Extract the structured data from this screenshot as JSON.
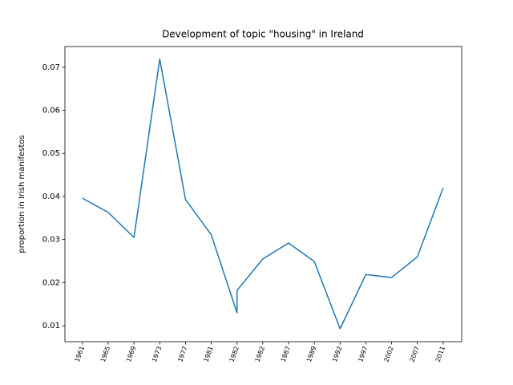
{
  "chart_data": {
    "type": "line",
    "title": "Development of topic \"housing\" in Ireland",
    "y_label": "proportion in Irish manifestos",
    "x": [
      0,
      1,
      2,
      3,
      4,
      5,
      6,
      6,
      7,
      8,
      9,
      10,
      11,
      12,
      13,
      14
    ],
    "series": [
      {
        "name": "housing",
        "color": "#1f77b4",
        "values": [
          0.0396,
          0.0363,
          0.0305,
          0.0719,
          0.0393,
          0.0311,
          0.013,
          0.0182,
          0.0255,
          0.0292,
          0.0249,
          0.0093,
          0.0219,
          0.0212,
          0.026,
          0.042
        ]
      }
    ],
    "xlim": [
      -0.68,
      14.72
    ],
    "xticks": [
      {
        "value": 0,
        "label": "1961"
      },
      {
        "value": 1,
        "label": "1965"
      },
      {
        "value": 2,
        "label": "1969"
      },
      {
        "value": 3,
        "label": "1973"
      },
      {
        "value": 4,
        "label": "1977"
      },
      {
        "value": 5,
        "label": "1981"
      },
      {
        "value": 6,
        "label": "1982"
      },
      {
        "value": 7,
        "label": "1982"
      },
      {
        "value": 8,
        "label": "1987"
      },
      {
        "value": 9,
        "label": "1989"
      },
      {
        "value": 10,
        "label": "1992"
      },
      {
        "value": 11,
        "label": "1997"
      },
      {
        "value": 12,
        "label": "2002"
      },
      {
        "value": 13,
        "label": "2007"
      },
      {
        "value": 14,
        "label": "2011"
      }
    ],
    "ylim": [
      0.0063,
      0.0748
    ],
    "yticks": [
      0.01,
      0.02,
      0.03,
      0.04,
      0.05,
      0.06,
      0.07
    ],
    "grid": false
  }
}
